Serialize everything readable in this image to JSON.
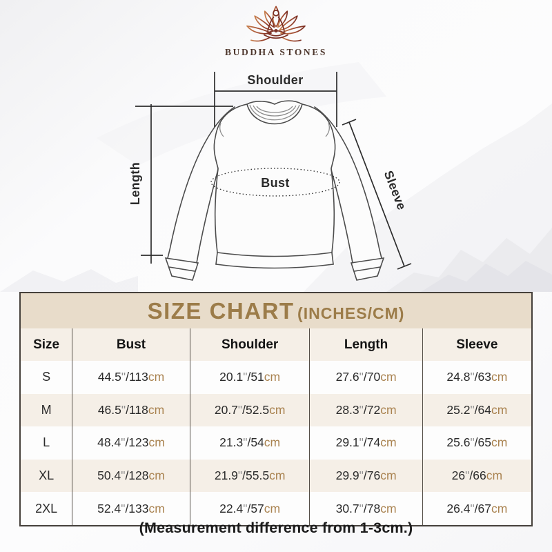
{
  "brand": {
    "name": "BUDDHA STONES",
    "logo_icon": "lotus-meditation-icon"
  },
  "diagram": {
    "labels": {
      "shoulder": "Shoulder",
      "length": "Length",
      "bust": "Bust",
      "sleeve": "Sleeve"
    }
  },
  "size_chart": {
    "title": "SIZE CHART",
    "title_suffix": "(INCHES/CM)",
    "inch_symbol": "\"",
    "separator": "/",
    "unit_label": "cm",
    "columns": [
      "Size",
      "Bust",
      "Shoulder",
      "Length",
      "Sleeve"
    ],
    "rows": [
      {
        "size": "S",
        "cells": [
          {
            "in": "44.5",
            "cm": "113"
          },
          {
            "in": "20.1",
            "cm": "51"
          },
          {
            "in": "27.6",
            "cm": "70"
          },
          {
            "in": "24.8",
            "cm": "63"
          }
        ]
      },
      {
        "size": "M",
        "cells": [
          {
            "in": "46.5",
            "cm": "118"
          },
          {
            "in": "20.7",
            "cm": "52.5"
          },
          {
            "in": "28.3",
            "cm": "72"
          },
          {
            "in": "25.2",
            "cm": "64"
          }
        ]
      },
      {
        "size": "L",
        "cells": [
          {
            "in": "48.4",
            "cm": "123"
          },
          {
            "in": "21.3",
            "cm": "54"
          },
          {
            "in": "29.1",
            "cm": "74"
          },
          {
            "in": "25.6",
            "cm": "65"
          }
        ]
      },
      {
        "size": "XL",
        "cells": [
          {
            "in": "50.4",
            "cm": "128"
          },
          {
            "in": "21.9",
            "cm": "55.5"
          },
          {
            "in": "29.9",
            "cm": "76"
          },
          {
            "in": "26",
            "cm": "66"
          }
        ]
      },
      {
        "size": "2XL",
        "cells": [
          {
            "in": "52.4",
            "cm": "133"
          },
          {
            "in": "22.4",
            "cm": "57"
          },
          {
            "in": "30.7",
            "cm": "78"
          },
          {
            "in": "26.4",
            "cm": "67"
          }
        ]
      }
    ]
  },
  "chart_data": {
    "type": "table",
    "title": "SIZE CHART (INCHES/CM)",
    "columns": [
      "Size",
      "Bust",
      "Shoulder",
      "Length",
      "Sleeve"
    ],
    "rows": [
      [
        "S",
        "44.5\"/113cm",
        "20.1\"/51cm",
        "27.6\"/70cm",
        "24.8\"/63cm"
      ],
      [
        "M",
        "46.5\"/118cm",
        "20.7\"/52.5cm",
        "28.3\"/72cm",
        "25.2\"/64cm"
      ],
      [
        "L",
        "48.4\"/123cm",
        "21.3\"/54cm",
        "29.1\"/74cm",
        "25.6\"/65cm"
      ],
      [
        "XL",
        "50.4\"/128cm",
        "21.9\"/55.5cm",
        "29.9\"/76cm",
        "26\"/66cm"
      ],
      [
        "2XL",
        "52.4\"/133cm",
        "22.4\"/57cm",
        "30.7\"/78cm",
        "26.4\"/67cm"
      ]
    ]
  },
  "footer": {
    "note": "(Measurement difference from 1-3cm.)"
  },
  "colors": {
    "gold": "#9c7c49",
    "beige": "#e8dcca",
    "cream": "#f5efe7",
    "white_row": "#fdfdfd",
    "border": "#45403b",
    "divider": "#544e47",
    "text_dark": "#2b2b2b",
    "unit": "#a9824f",
    "mark": "#8f8f8f",
    "footer": "#1c1c1c",
    "brand_text": "#4e372d",
    "lotus_light": "#c8804f",
    "lotus_dark": "#7c3024",
    "outline": "#4c4c4c",
    "dim": "#2d2d2d"
  }
}
